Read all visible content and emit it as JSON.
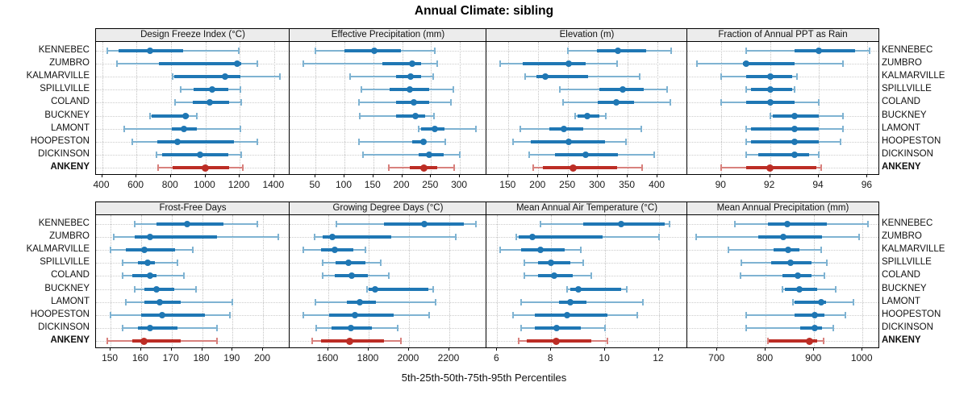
{
  "colors": {
    "series_blue": "#1f77b4",
    "series_blue_light": "#7fb3d2",
    "highlight_red": "#bc2d25",
    "highlight_red_light": "#d8817d",
    "grid": "#c8c8c8",
    "header_bg": "#ececec",
    "border": "#000000"
  },
  "chart_data": {
    "type": "interval-dot-plot",
    "title": "Annual Climate: sibling",
    "caption": "5th-25th-50th-75th-95th Percentiles",
    "percentiles": [
      "5th",
      "25th",
      "50th",
      "75th",
      "95th"
    ],
    "stations": [
      "KENNEBEC",
      "ZUMBRO",
      "KALMARVILLE",
      "SPILLVILLE",
      "COLAND",
      "BUCKNEY",
      "LAMONT",
      "HOOPESTON",
      "DICKINSON",
      "ANKENY"
    ],
    "highlight_station": "ANKENY",
    "legend_position": "none",
    "grid": "dotted",
    "panels": [
      {
        "title": "Design Freeze Index (°C)",
        "ticks": [
          400,
          600,
          800,
          1000,
          1200,
          1400
        ],
        "domain": [
          365,
          1490
        ],
        "values": [
          [
            430,
            495,
            680,
            870,
            1195
          ],
          [
            485,
            730,
            1185,
            1210,
            1300
          ],
          [
            810,
            820,
            1115,
            1205,
            1435
          ],
          [
            855,
            930,
            1040,
            1135,
            1205
          ],
          [
            825,
            925,
            1025,
            1140,
            1210
          ],
          [
            680,
            690,
            885,
            905,
            950
          ],
          [
            530,
            805,
            875,
            950,
            1205
          ],
          [
            575,
            720,
            840,
            1165,
            1300
          ],
          [
            715,
            750,
            970,
            1135,
            1210
          ],
          [
            725,
            810,
            1000,
            1140,
            1220
          ]
        ]
      },
      {
        "title": "Effective Precipitation (mm)",
        "ticks": [
          50,
          100,
          150,
          200,
          250,
          300
        ],
        "domain": [
          5,
          346
        ],
        "values": [
          [
            50,
            100,
            152,
            198,
            257
          ],
          [
            29,
            166,
            218,
            233,
            261
          ],
          [
            110,
            190,
            215,
            233,
            254
          ],
          [
            130,
            178,
            213,
            247,
            289
          ],
          [
            125,
            190,
            220,
            247,
            285
          ],
          [
            127,
            190,
            223,
            240,
            255
          ],
          [
            229,
            233,
            257,
            273,
            328
          ],
          [
            125,
            218,
            237,
            241,
            275
          ],
          [
            132,
            229,
            247,
            272,
            300
          ],
          [
            177,
            213,
            237,
            261,
            290
          ]
        ]
      },
      {
        "title": "Elevation (m)",
        "ticks": [
          150,
          200,
          250,
          300,
          350,
          400
        ],
        "domain": [
          113,
          450
        ],
        "values": [
          [
            249,
            299,
            334,
            381,
            423
          ],
          [
            136,
            174,
            251,
            280,
            332
          ],
          [
            178,
            197,
            212,
            284,
            370
          ],
          [
            236,
            303,
            341,
            377,
            416
          ],
          [
            242,
            300,
            331,
            361,
            422
          ],
          [
            262,
            266,
            282,
            303,
            313
          ],
          [
            170,
            218,
            243,
            276,
            373
          ],
          [
            157,
            188,
            251,
            312,
            347
          ],
          [
            184,
            228,
            280,
            334,
            395
          ],
          [
            191,
            208,
            258,
            332,
            374
          ]
        ]
      },
      {
        "title": "Fraction of Annual PPT as Rain",
        "ticks": [
          90,
          92,
          94,
          96
        ],
        "domain": [
          88.6,
          96.45
        ],
        "values": [
          [
            91.0,
            93.0,
            94.0,
            95.5,
            96.1
          ],
          [
            89.0,
            90.9,
            91.0,
            93.0,
            95.0
          ],
          [
            90.0,
            91.0,
            92.0,
            92.9,
            93.1
          ],
          [
            91.0,
            91.2,
            92.0,
            92.9,
            93.0
          ],
          [
            90.0,
            91.0,
            92.0,
            93.0,
            94.0
          ],
          [
            92.0,
            92.1,
            93.0,
            94.0,
            95.0
          ],
          [
            91.0,
            91.2,
            93.0,
            94.0,
            95.0
          ],
          [
            91.0,
            91.2,
            93.0,
            94.0,
            94.9
          ],
          [
            91.0,
            91.5,
            93.0,
            93.6,
            94.0
          ],
          [
            90.0,
            91.0,
            92.0,
            93.9,
            94.1
          ]
        ]
      },
      {
        "title": "Frost-Free Days",
        "ticks": [
          150,
          160,
          170,
          180,
          190,
          200
        ],
        "domain": [
          145.2,
          208.7
        ],
        "values": [
          [
            158,
            165,
            175,
            187,
            198
          ],
          [
            151,
            158,
            163,
            185,
            205
          ],
          [
            150,
            155,
            161,
            171,
            177
          ],
          [
            154,
            159,
            162,
            164.5,
            172
          ],
          [
            154,
            157,
            163,
            165,
            174
          ],
          [
            158,
            161,
            165,
            171,
            178
          ],
          [
            155,
            161,
            166,
            173,
            190
          ],
          [
            150,
            160,
            167,
            181,
            189
          ],
          [
            154,
            159,
            163,
            172,
            185
          ],
          [
            149,
            157,
            161,
            173,
            185
          ]
        ]
      },
      {
        "title": "Growing Degree Days (°C)",
        "ticks": [
          1600,
          1800,
          2000,
          2200
        ],
        "domain": [
          1408,
          2384
        ],
        "values": [
          [
            1640,
            1875,
            2075,
            2270,
            2330
          ],
          [
            1530,
            1570,
            1620,
            1910,
            2230
          ],
          [
            1475,
            1565,
            1630,
            1725,
            1785
          ],
          [
            1570,
            1635,
            1700,
            1785,
            1860
          ],
          [
            1570,
            1630,
            1715,
            1795,
            1900
          ],
          [
            1790,
            1800,
            1830,
            2095,
            2120
          ],
          [
            1535,
            1690,
            1755,
            1835,
            2130
          ],
          [
            1475,
            1605,
            1730,
            1925,
            2100
          ],
          [
            1540,
            1615,
            1710,
            1815,
            1945
          ],
          [
            1520,
            1565,
            1705,
            1875,
            1960
          ]
        ]
      },
      {
        "title": "Mean Annual Air Temperature (°C)",
        "ticks": [
          6,
          8,
          10,
          12
        ],
        "domain": [
          5.6,
          13.05
        ],
        "values": [
          [
            7.6,
            9.2,
            10.6,
            12.2,
            12.4
          ],
          [
            6.7,
            6.8,
            7.3,
            9.9,
            12.0
          ],
          [
            6.1,
            6.9,
            7.6,
            8.5,
            9.1
          ],
          [
            7.0,
            7.5,
            8.0,
            8.7,
            9.2
          ],
          [
            7.0,
            7.5,
            8.1,
            8.8,
            9.5
          ],
          [
            8.6,
            8.7,
            9.0,
            10.6,
            10.8
          ],
          [
            6.9,
            8.3,
            8.7,
            9.3,
            11.4
          ],
          [
            6.6,
            7.4,
            8.6,
            10.1,
            11.2
          ],
          [
            6.9,
            7.4,
            8.2,
            9.1,
            10.0
          ],
          [
            6.8,
            7.1,
            8.2,
            9.5,
            10.1
          ]
        ]
      },
      {
        "title": "Mean Annual Precipitation (mm)",
        "ticks": [
          700,
          800,
          900,
          1000
        ],
        "domain": [
          638,
          1033
        ],
        "values": [
          [
            737,
            804,
            845,
            926,
            1011
          ],
          [
            657,
            784,
            837,
            917,
            993
          ],
          [
            723,
            817,
            847,
            869,
            914
          ],
          [
            750,
            812,
            851,
            894,
            926
          ],
          [
            748,
            834,
            866,
            894,
            921
          ],
          [
            834,
            839,
            869,
            907,
            944
          ],
          [
            857,
            859,
            914,
            924,
            981
          ],
          [
            759,
            859,
            901,
            922,
            964
          ],
          [
            759,
            871,
            901,
            916,
            939
          ],
          [
            804,
            807,
            890,
            907,
            919
          ]
        ]
      }
    ]
  }
}
